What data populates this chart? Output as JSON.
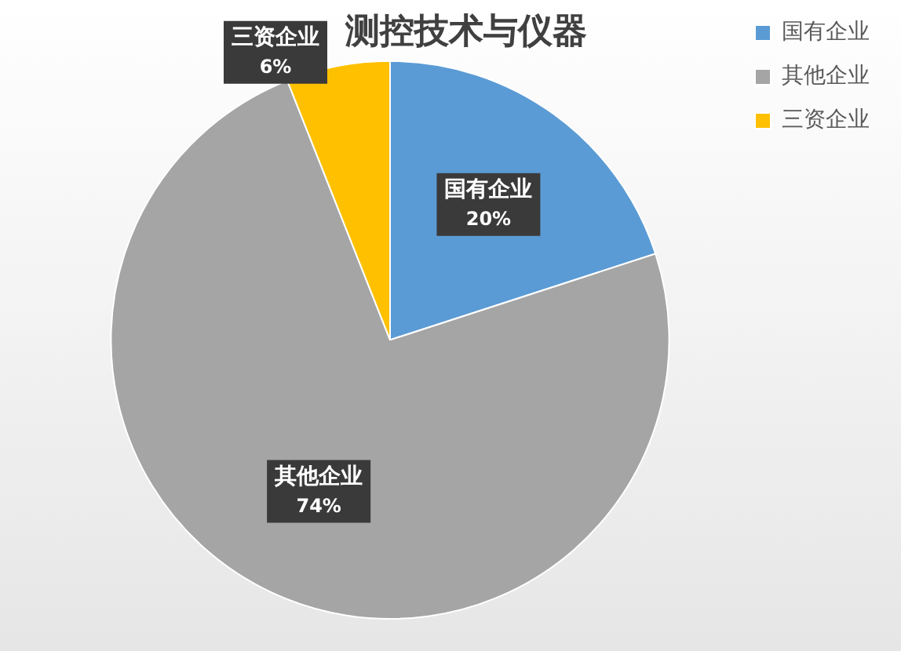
{
  "chart_data": {
    "type": "pie",
    "title": "测控技术与仪器",
    "categories": [
      "国有企业",
      "其他企业",
      "三资企业"
    ],
    "values": [
      20,
      74,
      6
    ],
    "colors": [
      "#5b9bd5",
      "#a5a5a5",
      "#ffc000"
    ],
    "value_labels": [
      "20%",
      "74%",
      "6%"
    ],
    "legend": "top right"
  }
}
